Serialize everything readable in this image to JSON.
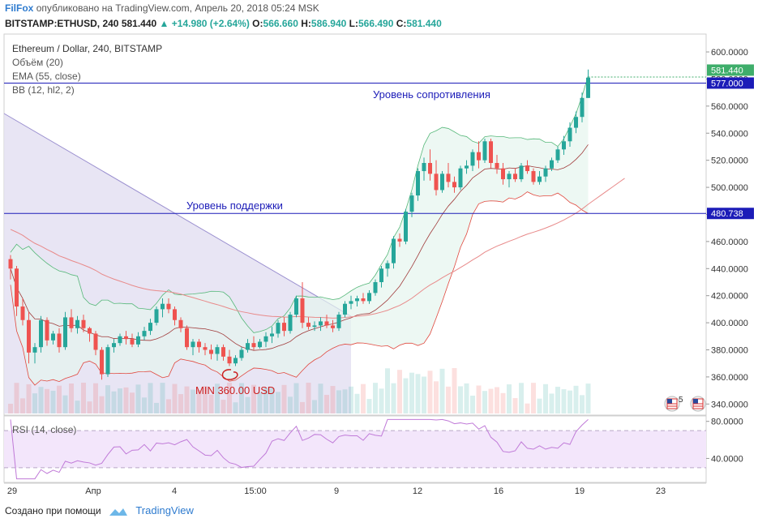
{
  "header": {
    "brand": "FilFox",
    "published_text": "опубликовано на TradingView.com, Апрель 20, 2018 05:24 MSK",
    "symbol_interval": "BITSTAMP:ETHUSD, 240",
    "last": "581.440",
    "change": "▲ +14.980 (+2.64%)",
    "o_label": "O:",
    "o_val": "566.660",
    "h_label": "H:",
    "h_val": "586.940",
    "l_label": "L:",
    "l_val": "566.490",
    "c_label": "C:",
    "c_val": "581.440"
  },
  "legend": {
    "title": "Ethereum / Dollar, 240, BITSTAMP",
    "volume": "Объём (20)",
    "ema": "EMA (55, close)",
    "bb": "BB (12, hl2, 2)",
    "rsi": "RSI (14, close)"
  },
  "annotations": {
    "resistance": "Уровень сопротивления",
    "support": "Уровень поддержки",
    "min": "MIN 360.00 USD"
  },
  "badges": {
    "last_price": "581.440",
    "resistance_price": "577.000",
    "support_price": "480.738",
    "event_count": "5"
  },
  "footer": {
    "created_with": "Создано при помощи",
    "brand": "TradingView"
  },
  "colors": {
    "up": "#26a69a",
    "down": "#ef5350",
    "level_line": "#1c1cb8",
    "bb_fill": "#e6f5ee",
    "triangle_fill": "#e4e0f2",
    "rsi_band": "#f3e6fb",
    "brand": "#2e7bcf"
  },
  "chart_data": {
    "type": "candlestick",
    "price_axis": {
      "ticks": [
        "600.0000",
        "580.0000",
        "560.0000",
        "540.0000",
        "520.0000",
        "500.0000",
        "480.0000",
        "460.0000",
        "440.0000",
        "420.0000",
        "400.0000",
        "380.0000",
        "360.0000",
        "340.0000"
      ],
      "values": [
        600,
        580,
        560,
        540,
        520,
        500,
        480,
        460,
        440,
        420,
        400,
        380,
        360,
        340
      ],
      "ylim": [
        333,
        612
      ]
    },
    "rsi_axis": {
      "ticks": [
        "80.0000",
        "40.0000"
      ],
      "values": [
        80,
        40
      ],
      "ylim": [
        15,
        85
      ],
      "band": [
        70,
        30
      ]
    },
    "time_axis": {
      "labels": [
        "29",
        "Апр",
        "4",
        "15:00",
        "9",
        "12",
        "16",
        "19",
        "23"
      ]
    },
    "levels": {
      "resistance": 577.0,
      "support": 480.738,
      "last": 581.44,
      "min_marked": 360.0
    },
    "candles": [
      [
        447,
        450,
        432,
        440
      ],
      [
        440,
        442,
        405,
        412
      ],
      [
        412,
        418,
        398,
        402
      ],
      [
        402,
        408,
        370,
        378
      ],
      [
        378,
        385,
        370,
        382
      ],
      [
        382,
        405,
        378,
        402
      ],
      [
        402,
        404,
        383,
        387
      ],
      [
        387,
        394,
        384,
        392
      ],
      [
        392,
        396,
        378,
        382
      ],
      [
        382,
        408,
        380,
        404
      ],
      [
        404,
        410,
        393,
        396
      ],
      [
        396,
        405,
        392,
        402
      ],
      [
        402,
        406,
        393,
        396
      ],
      [
        396,
        397,
        386,
        392
      ],
      [
        392,
        394,
        376,
        380
      ],
      [
        380,
        382,
        358,
        362
      ],
      [
        362,
        384,
        360,
        382
      ],
      [
        382,
        388,
        378,
        385
      ],
      [
        385,
        392,
        383,
        390
      ],
      [
        390,
        394,
        384,
        388
      ],
      [
        388,
        392,
        382,
        384
      ],
      [
        384,
        393,
        382,
        390
      ],
      [
        390,
        397,
        387,
        394
      ],
      [
        394,
        403,
        391,
        400
      ],
      [
        400,
        412,
        398,
        410
      ],
      [
        410,
        418,
        404,
        414
      ],
      [
        414,
        418,
        407,
        410
      ],
      [
        410,
        412,
        398,
        402
      ],
      [
        402,
        404,
        393,
        396
      ],
      [
        396,
        398,
        380,
        382
      ],
      [
        382,
        388,
        376,
        386
      ],
      [
        386,
        388,
        378,
        382
      ],
      [
        382,
        385,
        376,
        380
      ],
      [
        380,
        384,
        373,
        377
      ],
      [
        377,
        384,
        372,
        382
      ],
      [
        382,
        384,
        372,
        375
      ],
      [
        375,
        380,
        368,
        370
      ],
      [
        370,
        376,
        368,
        374
      ],
      [
        374,
        382,
        372,
        380
      ],
      [
        380,
        388,
        378,
        385
      ],
      [
        385,
        390,
        380,
        382
      ],
      [
        382,
        388,
        381,
        386
      ],
      [
        386,
        393,
        382,
        390
      ],
      [
        390,
        397,
        385,
        392
      ],
      [
        392,
        402,
        389,
        400
      ],
      [
        400,
        404,
        390,
        394
      ],
      [
        394,
        408,
        392,
        406
      ],
      [
        406,
        420,
        404,
        418
      ],
      [
        418,
        430,
        396,
        400
      ],
      [
        400,
        404,
        395,
        397
      ],
      [
        397,
        401,
        394,
        398
      ],
      [
        398,
        404,
        394,
        401
      ],
      [
        401,
        406,
        396,
        398
      ],
      [
        398,
        402,
        393,
        396
      ],
      [
        396,
        408,
        394,
        406
      ],
      [
        406,
        416,
        404,
        414
      ],
      [
        414,
        420,
        410,
        416
      ],
      [
        416,
        420,
        412,
        418
      ],
      [
        418,
        422,
        414,
        416
      ],
      [
        416,
        424,
        414,
        422
      ],
      [
        422,
        432,
        420,
        430
      ],
      [
        430,
        442,
        426,
        440
      ],
      [
        440,
        446,
        434,
        444
      ],
      [
        444,
        464,
        440,
        462
      ],
      [
        462,
        466,
        456,
        460
      ],
      [
        460,
        484,
        458,
        482
      ],
      [
        482,
        496,
        478,
        494
      ],
      [
        494,
        514,
        490,
        512
      ],
      [
        512,
        522,
        505,
        518
      ],
      [
        518,
        528,
        505,
        510
      ],
      [
        510,
        520,
        494,
        498
      ],
      [
        498,
        512,
        496,
        510
      ],
      [
        510,
        518,
        500,
        504
      ],
      [
        504,
        508,
        496,
        500
      ],
      [
        500,
        516,
        498,
        514
      ],
      [
        514,
        520,
        510,
        516
      ],
      [
        516,
        528,
        512,
        526
      ],
      [
        526,
        534,
        514,
        520
      ],
      [
        520,
        536,
        518,
        534
      ],
      [
        534,
        536,
        514,
        518
      ],
      [
        518,
        524,
        510,
        514
      ],
      [
        514,
        518,
        502,
        506
      ],
      [
        506,
        512,
        500,
        510
      ],
      [
        510,
        514,
        504,
        506
      ],
      [
        506,
        518,
        504,
        516
      ],
      [
        516,
        520,
        510,
        512
      ],
      [
        512,
        514,
        502,
        504
      ],
      [
        504,
        512,
        502,
        508
      ],
      [
        508,
        516,
        504,
        514
      ],
      [
        514,
        522,
        512,
        520
      ],
      [
        520,
        530,
        518,
        528
      ],
      [
        528,
        538,
        524,
        534
      ],
      [
        534,
        548,
        530,
        544
      ],
      [
        544,
        556,
        540,
        552
      ],
      [
        552,
        570,
        548,
        566
      ],
      [
        566,
        587,
        566,
        581
      ]
    ]
  }
}
